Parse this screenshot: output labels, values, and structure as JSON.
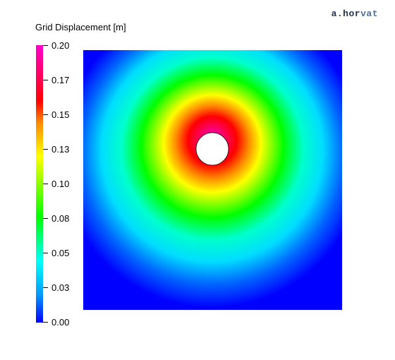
{
  "watermark": {
    "prefix": "a.hor",
    "suffix": "vat"
  },
  "legend": {
    "title": "Grid Displacement [m]",
    "ticks": [
      "0.20",
      "0.17",
      "0.15",
      "0.13",
      "0.10",
      "0.08",
      "0.05",
      "0.03",
      "0.00"
    ]
  },
  "colors": {
    "colormap": [
      "#0000ff",
      "#0099ff",
      "#00ffff",
      "#00ff00",
      "#ffff00",
      "#ff8a00",
      "#ff0000",
      "#ff00cc"
    ]
  }
}
